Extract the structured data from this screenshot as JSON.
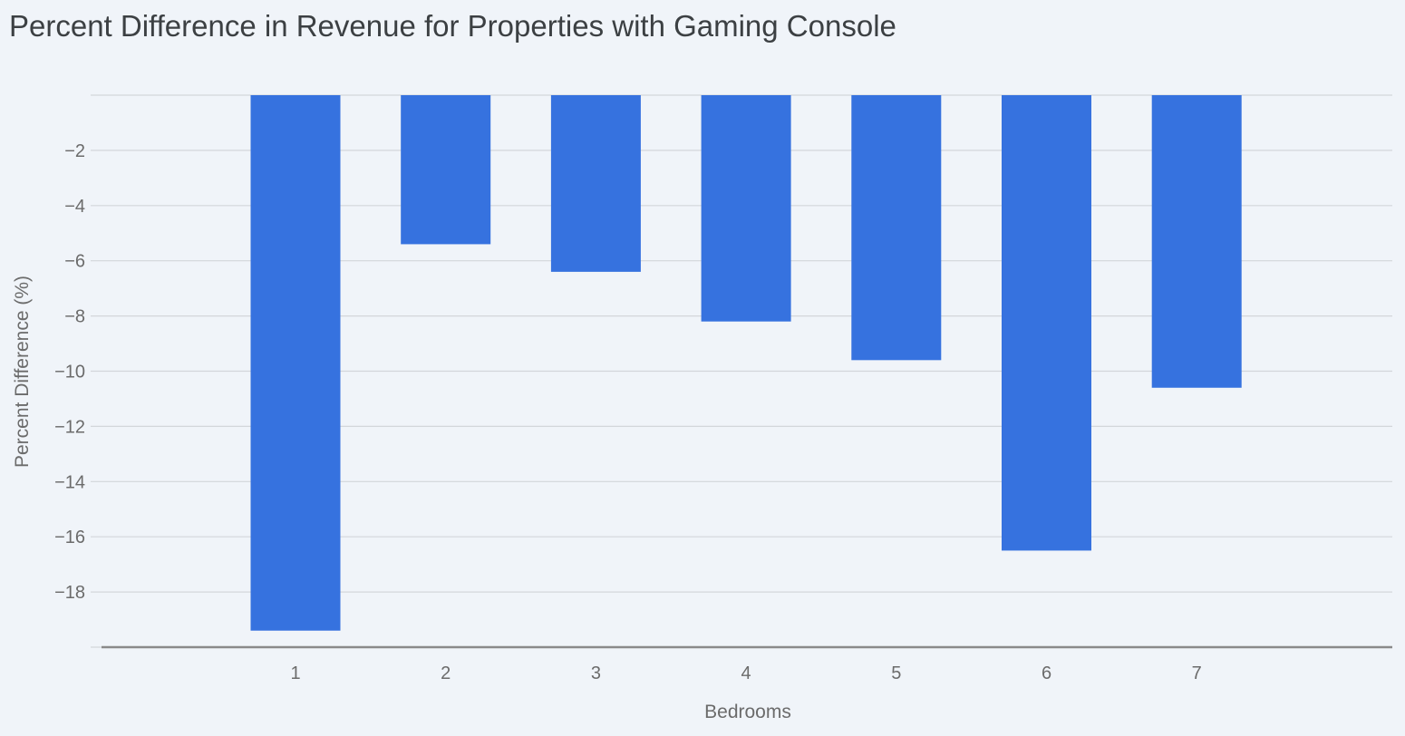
{
  "chart_data": {
    "type": "bar",
    "title": "Percent Difference in Revenue for Properties with Gaming Console",
    "xlabel": "Bedrooms",
    "ylabel": "Percent Difference (%)",
    "categories": [
      "1",
      "2",
      "3",
      "4",
      "5",
      "6",
      "7"
    ],
    "values": [
      -19.4,
      -5.4,
      -6.4,
      -8.2,
      -9.6,
      -16.5,
      -10.6
    ],
    "ylim": [
      -20,
      0
    ],
    "yticks": [
      -2,
      -4,
      -6,
      -8,
      -10,
      -12,
      -14,
      -16,
      -18
    ],
    "ytick_labels": [
      "−2",
      "−4",
      "−6",
      "−8",
      "−10",
      "−12",
      "−14",
      "−16",
      "−18"
    ],
    "grid": true,
    "legend": "none",
    "bar_color": "#3672df"
  }
}
